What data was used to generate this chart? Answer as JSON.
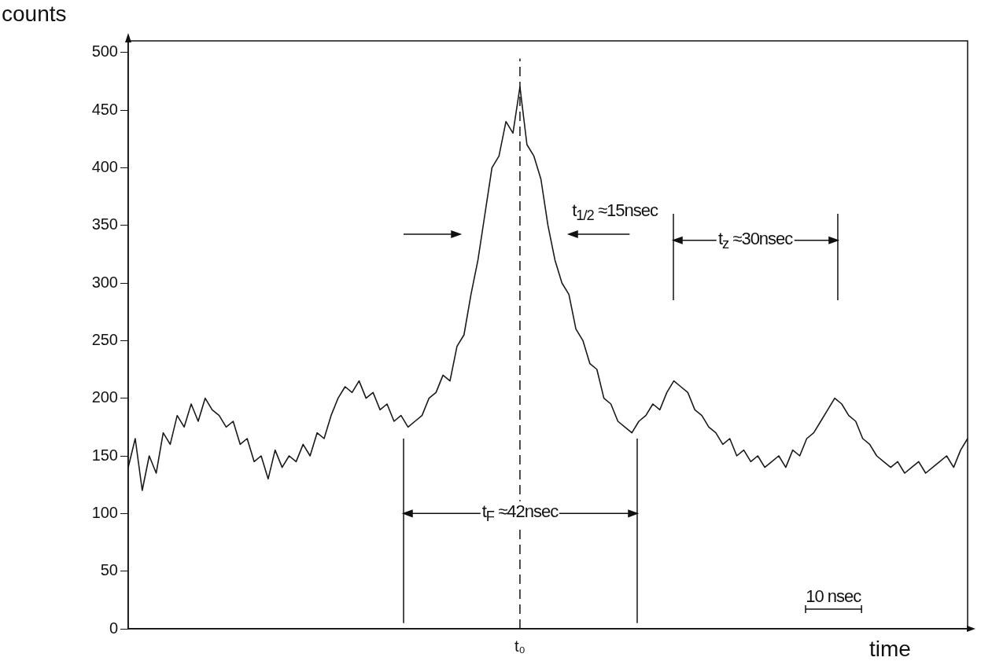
{
  "chart_data": {
    "type": "line",
    "ylabel": "counts",
    "xlabel": "time",
    "categories": [
      null,
      null,
      null,
      null,
      null,
      null,
      null,
      null,
      null,
      null,
      null,
      null,
      null,
      null,
      null,
      null,
      null,
      null,
      null,
      null,
      null,
      null,
      null,
      null,
      null,
      null,
      null,
      null,
      null,
      null,
      null,
      null,
      null,
      null,
      null,
      null,
      null,
      null,
      null,
      null,
      null,
      null,
      null,
      null,
      null,
      null,
      null,
      null,
      null,
      null,
      null,
      null,
      null,
      null,
      null,
      null,
      "t₀",
      null,
      null,
      null,
      null,
      null,
      null,
      null,
      null,
      null,
      null,
      null,
      null,
      null,
      null,
      null,
      null,
      null,
      null,
      null,
      null,
      null,
      null,
      null,
      null,
      null,
      null,
      null,
      null,
      null,
      null,
      null,
      null,
      null,
      null,
      null,
      null,
      null,
      null,
      null,
      null,
      null,
      null,
      null,
      null,
      null,
      null,
      null,
      null,
      null,
      null,
      null,
      null,
      null,
      null,
      null,
      null,
      null,
      null,
      null,
      null,
      null,
      null,
      null,
      null
    ],
    "series": [
      {
        "color": "#1a1a1a",
        "values": [
          140,
          165,
          120,
          150,
          135,
          170,
          160,
          185,
          175,
          195,
          180,
          200,
          190,
          185,
          175,
          180,
          160,
          165,
          145,
          150,
          130,
          155,
          140,
          150,
          145,
          160,
          150,
          170,
          165,
          185,
          200,
          210,
          205,
          215,
          200,
          205,
          190,
          195,
          180,
          185,
          175,
          180,
          185,
          200,
          205,
          220,
          215,
          245,
          255,
          290,
          320,
          360,
          400,
          410,
          440,
          430,
          470,
          420,
          410,
          390,
          350,
          320,
          300,
          290,
          260,
          250,
          230,
          225,
          200,
          195,
          180,
          175,
          170,
          180,
          185,
          195,
          190,
          205,
          215,
          210,
          205,
          190,
          185,
          175,
          170,
          160,
          165,
          150,
          155,
          145,
          150,
          140,
          145,
          150,
          140,
          155,
          150,
          165,
          170,
          180,
          190,
          200,
          195,
          185,
          180,
          165,
          160,
          150,
          145,
          140,
          145,
          135,
          140,
          145,
          135,
          140,
          145,
          150,
          140,
          155,
          165
        ]
      }
    ],
    "ylim": [
      0,
      510
    ],
    "yticks": [
      0,
      50,
      100,
      150,
      200,
      250,
      300,
      350,
      400,
      450,
      500
    ],
    "grid": false,
    "legend": false,
    "ref_lines": [
      {
        "axis": "x",
        "value": "t₀",
        "line_style": "dashed"
      }
    ],
    "annotations": [
      "t$_{1/2}$ ≈15nsec",
      "t$_{z}$ ≈30nsec",
      "t$_{F}$ ≈42nsec",
      "10 nsec"
    ]
  }
}
